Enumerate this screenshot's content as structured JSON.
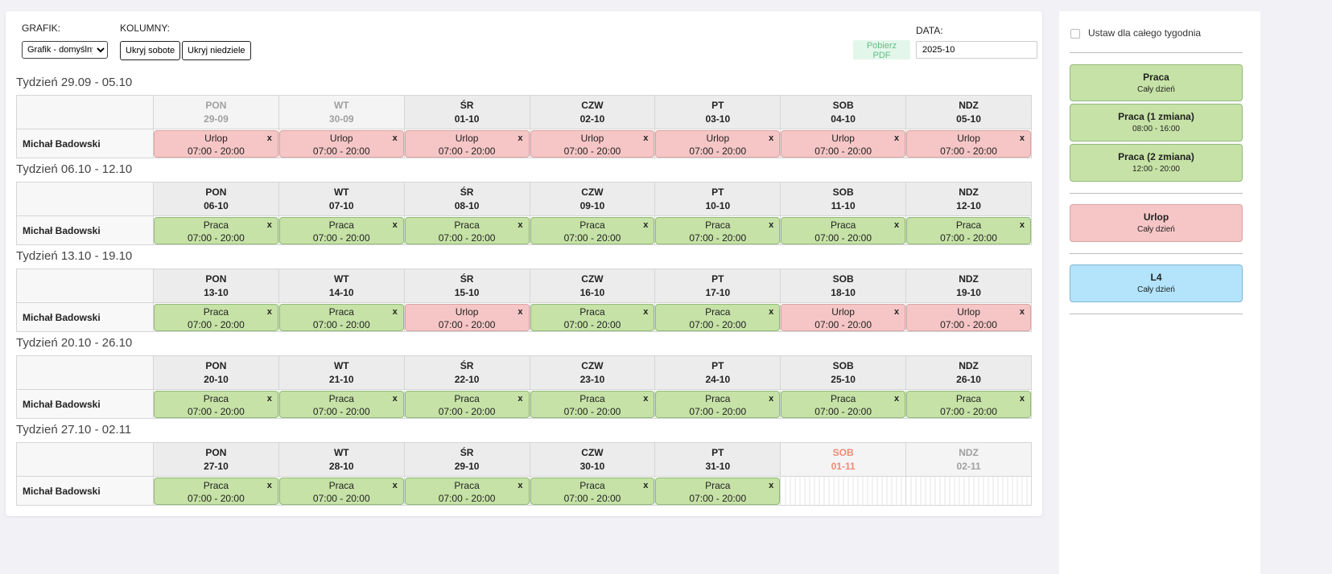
{
  "toolbar": {
    "grafik_label": "GRAFIK:",
    "grafik_value": "Grafik - domyślny",
    "kolumny_label": "KOLUMNY:",
    "hide_sat": "Ukryj sobote",
    "hide_sun": "Ukryj niedziele",
    "pdf": "Pobierz PDF",
    "data_label": "DATA:",
    "data_value": "2025-10"
  },
  "employee": "Michał Badowski",
  "weeks": [
    {
      "title": "Tydzień 29.09 - 05.10",
      "days": [
        [
          "PON",
          "29-09",
          "faded"
        ],
        [
          "WT",
          "30-09",
          "faded"
        ],
        [
          "ŚR",
          "01-10",
          ""
        ],
        [
          "CZW",
          "02-10",
          ""
        ],
        [
          "PT",
          "03-10",
          ""
        ],
        [
          "SOB",
          "04-10",
          ""
        ],
        [
          "NDZ",
          "05-10",
          ""
        ]
      ],
      "cells": [
        "Urlop",
        "Urlop",
        "Urlop",
        "Urlop",
        "Urlop",
        "Urlop",
        "Urlop"
      ]
    },
    {
      "title": "Tydzień 06.10 - 12.10",
      "days": [
        [
          "PON",
          "06-10",
          ""
        ],
        [
          "WT",
          "07-10",
          ""
        ],
        [
          "ŚR",
          "08-10",
          ""
        ],
        [
          "CZW",
          "09-10",
          ""
        ],
        [
          "PT",
          "10-10",
          ""
        ],
        [
          "SOB",
          "11-10",
          ""
        ],
        [
          "NDZ",
          "12-10",
          ""
        ]
      ],
      "cells": [
        "Praca",
        "Praca",
        "Praca",
        "Praca",
        "Praca",
        "Praca",
        "Praca"
      ]
    },
    {
      "title": "Tydzień 13.10 - 19.10",
      "days": [
        [
          "PON",
          "13-10",
          ""
        ],
        [
          "WT",
          "14-10",
          ""
        ],
        [
          "ŚR",
          "15-10",
          ""
        ],
        [
          "CZW",
          "16-10",
          ""
        ],
        [
          "PT",
          "17-10",
          ""
        ],
        [
          "SOB",
          "18-10",
          ""
        ],
        [
          "NDZ",
          "19-10",
          ""
        ]
      ],
      "cells": [
        "Praca",
        "Praca",
        "Urlop",
        "Praca",
        "Praca",
        "Urlop",
        "Urlop"
      ]
    },
    {
      "title": "Tydzień 20.10 - 26.10",
      "days": [
        [
          "PON",
          "20-10",
          ""
        ],
        [
          "WT",
          "21-10",
          ""
        ],
        [
          "ŚR",
          "22-10",
          ""
        ],
        [
          "CZW",
          "23-10",
          ""
        ],
        [
          "PT",
          "24-10",
          ""
        ],
        [
          "SOB",
          "25-10",
          ""
        ],
        [
          "NDZ",
          "26-10",
          ""
        ]
      ],
      "cells": [
        "Praca",
        "Praca",
        "Praca",
        "Praca",
        "Praca",
        "Praca",
        "Praca"
      ]
    },
    {
      "title": "Tydzień 27.10 - 02.11",
      "days": [
        [
          "PON",
          "27-10",
          ""
        ],
        [
          "WT",
          "28-10",
          ""
        ],
        [
          "ŚR",
          "29-10",
          ""
        ],
        [
          "CZW",
          "30-10",
          ""
        ],
        [
          "PT",
          "31-10",
          ""
        ],
        [
          "SOB",
          "01-11",
          "red"
        ],
        [
          "NDZ",
          "02-11",
          "faded"
        ]
      ],
      "cells": [
        "Praca",
        "Praca",
        "Praca",
        "Praca",
        "Praca",
        null,
        null
      ]
    }
  ],
  "shift_time": "07:00 - 20:00",
  "remove_label": "x",
  "sidebar": {
    "whole_week": "Ustaw dla całego tygodnia",
    "templates": [
      {
        "name": "Praca",
        "sub": "Cały dzień"
      },
      {
        "name": "Praca (1 zmiana)",
        "sub": "08:00 - 16:00"
      },
      {
        "name": "Praca (2 zmiana)",
        "sub": "12:00 - 20:00"
      },
      {
        "name": "Urlop",
        "sub": "Cały dzień"
      },
      {
        "name": "L4",
        "sub": "Cały dzień"
      }
    ]
  }
}
